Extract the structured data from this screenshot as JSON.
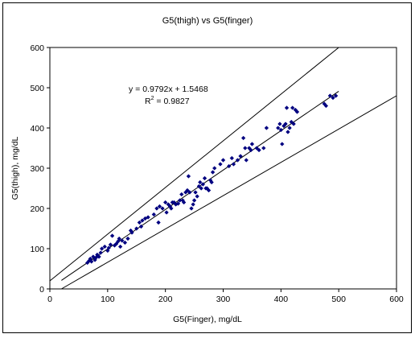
{
  "chart_data": {
    "type": "scatter",
    "title": "G5(thigh) vs G5(finger)",
    "xlabel": "G5(Finger), mg/dL",
    "ylabel": "G5(thigh), mg/dL",
    "xlim": [
      0,
      600
    ],
    "ylim": [
      0,
      600
    ],
    "xticks": [
      0,
      100,
      200,
      300,
      400,
      500,
      600
    ],
    "yticks": [
      0,
      100,
      200,
      300,
      400,
      500,
      600
    ],
    "grid": false,
    "legend": "none",
    "equation": "y = 0.9792x + 1.5468",
    "r2_label": "R",
    "r2_exponent": "2",
    "r2_value": " = 0.9827",
    "marker_color": "#000080",
    "line_color": "#000000",
    "series": [
      {
        "points": [
          [
            65,
            65
          ],
          [
            68,
            70
          ],
          [
            70,
            75
          ],
          [
            72,
            68
          ],
          [
            75,
            80
          ],
          [
            78,
            72
          ],
          [
            80,
            78
          ],
          [
            82,
            85
          ],
          [
            85,
            80
          ],
          [
            88,
            90
          ],
          [
            90,
            100
          ],
          [
            95,
            105
          ],
          [
            100,
            95
          ],
          [
            102,
            102
          ],
          [
            105,
            110
          ],
          [
            108,
            132
          ],
          [
            112,
            108
          ],
          [
            115,
            112
          ],
          [
            118,
            118
          ],
          [
            120,
            125
          ],
          [
            122,
            105
          ],
          [
            125,
            120
          ],
          [
            130,
            115
          ],
          [
            135,
            125
          ],
          [
            140,
            145
          ],
          [
            142,
            140
          ],
          [
            150,
            150
          ],
          [
            155,
            165
          ],
          [
            158,
            155
          ],
          [
            160,
            170
          ],
          [
            165,
            175
          ],
          [
            170,
            178
          ],
          [
            180,
            185
          ],
          [
            185,
            200
          ],
          [
            188,
            165
          ],
          [
            190,
            205
          ],
          [
            195,
            200
          ],
          [
            200,
            215
          ],
          [
            202,
            190
          ],
          [
            205,
            210
          ],
          [
            208,
            205
          ],
          [
            210,
            200
          ],
          [
            212,
            215
          ],
          [
            215,
            215
          ],
          [
            218,
            210
          ],
          [
            222,
            212
          ],
          [
            225,
            220
          ],
          [
            228,
            235
          ],
          [
            230,
            220
          ],
          [
            232,
            215
          ],
          [
            235,
            240
          ],
          [
            238,
            245
          ],
          [
            240,
            280
          ],
          [
            242,
            240
          ],
          [
            245,
            200
          ],
          [
            248,
            210
          ],
          [
            250,
            220
          ],
          [
            252,
            240
          ],
          [
            255,
            230
          ],
          [
            258,
            255
          ],
          [
            260,
            265
          ],
          [
            262,
            250
          ],
          [
            265,
            260
          ],
          [
            268,
            275
          ],
          [
            270,
            250
          ],
          [
            272,
            250
          ],
          [
            275,
            245
          ],
          [
            278,
            270
          ],
          [
            280,
            265
          ],
          [
            282,
            290
          ],
          [
            285,
            300
          ],
          [
            295,
            310
          ],
          [
            300,
            320
          ],
          [
            310,
            305
          ],
          [
            315,
            325
          ],
          [
            318,
            310
          ],
          [
            325,
            320
          ],
          [
            330,
            330
          ],
          [
            335,
            375
          ],
          [
            338,
            350
          ],
          [
            340,
            320
          ],
          [
            345,
            350
          ],
          [
            348,
            345
          ],
          [
            350,
            360
          ],
          [
            358,
            350
          ],
          [
            362,
            345
          ],
          [
            370,
            350
          ],
          [
            375,
            400
          ],
          [
            395,
            400
          ],
          [
            398,
            410
          ],
          [
            400,
            395
          ],
          [
            402,
            360
          ],
          [
            405,
            405
          ],
          [
            408,
            410
          ],
          [
            410,
            450
          ],
          [
            412,
            390
          ],
          [
            415,
            400
          ],
          [
            418,
            415
          ],
          [
            420,
            450
          ],
          [
            422,
            410
          ],
          [
            425,
            445
          ],
          [
            428,
            440
          ],
          [
            475,
            460
          ],
          [
            478,
            455
          ],
          [
            485,
            480
          ],
          [
            490,
            475
          ],
          [
            495,
            480
          ]
        ]
      }
    ],
    "lines": [
      {
        "name": "upper",
        "x": [
          0,
          500
        ],
        "y": [
          20,
          600
        ]
      },
      {
        "name": "lower",
        "x": [
          20,
          600
        ],
        "y": [
          0,
          480
        ]
      },
      {
        "name": "regression",
        "x": [
          20,
          500
        ],
        "y": [
          21.13,
          491.15
        ]
      }
    ]
  }
}
